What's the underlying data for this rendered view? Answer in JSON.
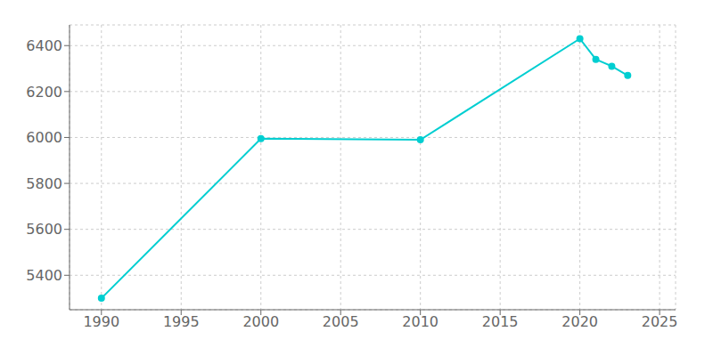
{
  "chart_data": {
    "type": "line",
    "x": [
      1990,
      2000,
      2010,
      2020,
      2021,
      2022,
      2023
    ],
    "values": [
      5300,
      5995,
      5990,
      6430,
      6340,
      6310,
      6270
    ],
    "color": "#00CED1",
    "marker": "circle",
    "xlim": [
      1988,
      2026
    ],
    "ylim": [
      5250,
      6490
    ],
    "xticks": [
      1990,
      1995,
      2000,
      2005,
      2010,
      2015,
      2020,
      2025
    ],
    "yticks": [
      5400,
      5600,
      5800,
      6000,
      6200,
      6400
    ],
    "grid": true
  }
}
